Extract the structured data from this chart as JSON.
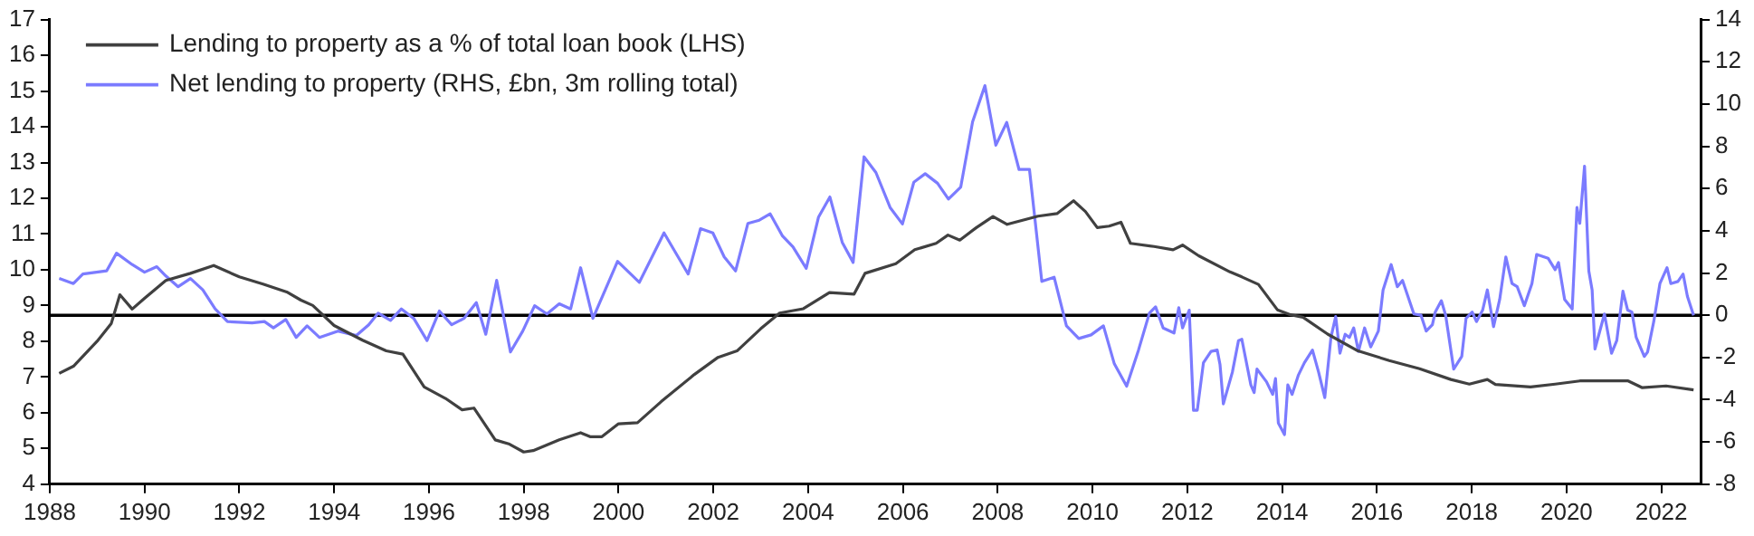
{
  "chart_data": {
    "type": "line",
    "xlim": [
      1988,
      2022.83
    ],
    "xticks": [
      1988,
      1990,
      1992,
      1994,
      1996,
      1998,
      2000,
      2002,
      2004,
      2006,
      2008,
      2010,
      2012,
      2014,
      2016,
      2018,
      2020,
      2022
    ],
    "ylim": [
      4,
      17
    ],
    "yticks": [
      4,
      5,
      6,
      7,
      8,
      9,
      10,
      11,
      12,
      13,
      14,
      15,
      16,
      17
    ],
    "y2lim": [
      -8,
      14
    ],
    "y2ticks": [
      -8,
      -6,
      -4,
      -2,
      0,
      2,
      4,
      6,
      8,
      10,
      12,
      14
    ],
    "grid": false,
    "legend": "top left",
    "marker": "none",
    "line_style": "solid",
    "ref_lines": [
      {
        "axis": "y2",
        "value": 0,
        "color": "#000000"
      }
    ],
    "series": [
      {
        "name": "Lending to property as a % of total loan book (LHS)",
        "color": "#404040",
        "x": [
          1988.2,
          1988.5,
          1989.0,
          1989.3,
          1989.48,
          1989.74,
          1990.0,
          1990.45,
          1990.97,
          1991.46,
          1992.0,
          1992.5,
          1993.0,
          1993.3,
          1993.55,
          1994.0,
          1994.6,
          1995.1,
          1995.45,
          1995.9,
          1996.35,
          1996.7,
          1996.95,
          1997.4,
          1997.7,
          1998.0,
          1998.2,
          1998.75,
          1999.2,
          1999.4,
          1999.65,
          2000.0,
          2000.4,
          2000.9,
          2001.6,
          2002.1,
          2002.5,
          2003.0,
          2003.4,
          2003.9,
          2004.45,
          2004.97,
          2005.2,
          2005.85,
          2006.25,
          2006.7,
          2006.95,
          2007.2,
          2007.55,
          2007.9,
          2008.2,
          2008.85,
          2009.25,
          2009.6,
          2009.85,
          2010.1,
          2010.35,
          2010.6,
          2010.8,
          2011.3,
          2011.7,
          2011.9,
          2012.24,
          2012.9,
          2013.15,
          2013.5,
          2013.9,
          2014.18,
          2014.44,
          2014.96,
          2015.6,
          2016.26,
          2016.9,
          2017.56,
          2017.95,
          2018.33,
          2018.5,
          2019.24,
          2019.76,
          2020.28,
          2020.54,
          2021.3,
          2021.6,
          2022.1,
          2022.68
        ],
        "values": [
          7.1,
          7.3,
          8.0,
          8.5,
          9.3,
          8.9,
          9.2,
          9.7,
          9.9,
          10.12,
          9.8,
          9.6,
          9.38,
          9.15,
          9.0,
          8.44,
          8.03,
          7.73,
          7.64,
          6.72,
          6.4,
          6.08,
          6.13,
          5.24,
          5.12,
          4.9,
          4.94,
          5.24,
          5.44,
          5.33,
          5.33,
          5.69,
          5.72,
          6.31,
          7.07,
          7.55,
          7.73,
          8.35,
          8.79,
          8.91,
          9.36,
          9.32,
          9.9,
          10.17,
          10.56,
          10.74,
          10.97,
          10.83,
          11.18,
          11.49,
          11.27,
          11.5,
          11.57,
          11.93,
          11.63,
          11.18,
          11.22,
          11.33,
          10.74,
          10.65,
          10.56,
          10.69,
          10.39,
          9.94,
          9.8,
          9.59,
          8.88,
          8.74,
          8.67,
          8.2,
          7.73,
          7.46,
          7.23,
          6.93,
          6.8,
          6.93,
          6.79,
          6.72,
          6.8,
          6.89,
          6.89,
          6.89,
          6.7,
          6.75,
          6.64
        ]
      },
      {
        "name": "Net lending to property (RHS, £bn, 3m rolling total)",
        "color": "#7b7bff",
        "axis": "y2",
        "x": [
          1988.2,
          1988.5,
          1988.7,
          1989.2,
          1989.41,
          1989.74,
          1990.0,
          1990.26,
          1990.45,
          1990.71,
          1990.97,
          1991.23,
          1991.49,
          1991.75,
          1992.27,
          1992.53,
          1992.72,
          1992.98,
          1993.2,
          1993.43,
          1993.69,
          1994.08,
          1994.47,
          1994.73,
          1994.93,
          1995.19,
          1995.42,
          1995.68,
          1995.96,
          1996.22,
          1996.48,
          1996.74,
          1997.0,
          1997.2,
          1997.43,
          1997.72,
          1997.98,
          1998.23,
          1998.49,
          1998.75,
          1998.99,
          1999.2,
          1999.46,
          1999.98,
          2000.44,
          2000.96,
          2001.47,
          2001.73,
          2001.99,
          2002.23,
          2002.47,
          2002.73,
          2002.97,
          2003.2,
          2003.46,
          2003.68,
          2003.96,
          2004.22,
          2004.46,
          2004.72,
          2004.95,
          2005.18,
          2005.43,
          2005.73,
          2005.99,
          2006.23,
          2006.47,
          2006.73,
          2006.96,
          2007.22,
          2007.47,
          2007.73,
          2007.96,
          2008.19,
          2008.45,
          2008.67,
          2008.93,
          2009.19,
          2009.45,
          2009.71,
          2009.97,
          2010.23,
          2010.46,
          2010.72,
          2010.97,
          2011.2,
          2011.33,
          2011.49,
          2011.72,
          2011.72,
          2011.82,
          2011.9,
          2012.04,
          2012.13,
          2012.21,
          2012.34,
          2012.5,
          2012.63,
          2012.69,
          2012.76,
          2012.95,
          2013.08,
          2013.15,
          2013.34,
          2013.41,
          2013.47,
          2013.67,
          2013.8,
          2013.86,
          2013.92,
          2014.05,
          2014.12,
          2014.21,
          2014.34,
          2014.47,
          2014.64,
          2014.77,
          2014.9,
          2015.03,
          2015.13,
          2015.22,
          2015.33,
          2015.42,
          2015.51,
          2015.61,
          2015.74,
          2015.87,
          2016.03,
          2016.13,
          2016.3,
          2016.43,
          2016.54,
          2016.78,
          2016.93,
          2017.04,
          2017.17,
          2017.23,
          2017.36,
          2017.45,
          2017.62,
          2017.79,
          2017.88,
          2018.01,
          2018.1,
          2018.23,
          2018.33,
          2018.46,
          2018.59,
          2018.72,
          2018.85,
          2018.96,
          2019.11,
          2019.27,
          2019.37,
          2019.61,
          2019.76,
          2019.83,
          2019.96,
          2020.12,
          2020.22,
          2020.28,
          2020.38,
          2020.47,
          2020.54,
          2020.6,
          2020.8,
          2020.95,
          2021.06,
          2021.19,
          2021.29,
          2021.38,
          2021.47,
          2021.64,
          2021.71,
          2021.84,
          2021.97,
          2022.12,
          2022.2,
          2022.35,
          2022.46,
          2022.55,
          2022.68
        ],
        "values": [
          1.74,
          1.5,
          1.95,
          2.1,
          2.94,
          2.4,
          2.04,
          2.3,
          1.86,
          1.35,
          1.74,
          1.2,
          0.3,
          -0.3,
          -0.36,
          -0.3,
          -0.6,
          -0.2,
          -1.05,
          -0.5,
          -1.05,
          -0.75,
          -0.96,
          -0.45,
          0.1,
          -0.24,
          0.3,
          -0.15,
          -1.2,
          0.2,
          -0.45,
          -0.15,
          0.6,
          -0.9,
          1.65,
          -1.74,
          -0.75,
          0.45,
          0.06,
          0.54,
          0.3,
          2.25,
          -0.15,
          2.55,
          1.56,
          3.9,
          1.95,
          4.1,
          3.9,
          2.76,
          2.1,
          4.35,
          4.5,
          4.8,
          3.75,
          3.24,
          2.22,
          4.65,
          5.6,
          3.45,
          2.5,
          7.5,
          6.76,
          5.1,
          4.32,
          6.3,
          6.7,
          6.25,
          5.5,
          6.07,
          9.16,
          10.87,
          8.05,
          9.13,
          6.9,
          6.9,
          1.6,
          1.8,
          -0.5,
          -1.1,
          -0.93,
          -0.5,
          -2.3,
          -3.36,
          -1.65,
          0.1,
          0.4,
          -0.6,
          -0.84,
          -0.84,
          0.36,
          -0.6,
          0.24,
          -4.5,
          -4.5,
          -2.25,
          -1.71,
          -1.65,
          -2.34,
          -4.2,
          -2.7,
          -1.2,
          -1.14,
          -3.3,
          -3.66,
          -2.55,
          -3.15,
          -3.75,
          -3.0,
          -5.1,
          -5.65,
          -3.3,
          -3.75,
          -2.85,
          -2.25,
          -1.65,
          -2.7,
          -3.9,
          -1.05,
          -0.06,
          -1.8,
          -0.9,
          -1.05,
          -0.6,
          -1.71,
          -0.6,
          -1.5,
          -0.75,
          1.2,
          2.4,
          1.35,
          1.65,
          0.06,
          0,
          -0.75,
          -0.45,
          0.15,
          0.69,
          0,
          -2.55,
          -1.95,
          -0.15,
          0.15,
          -0.3,
          0.24,
          1.2,
          -0.54,
          0.75,
          2.76,
          1.5,
          1.35,
          0.45,
          1.5,
          2.88,
          2.7,
          2.16,
          2.5,
          0.75,
          0.3,
          5.1,
          4.35,
          7.06,
          2.1,
          1.2,
          -1.6,
          0.06,
          -1.8,
          -1.2,
          1.14,
          0.24,
          0.15,
          -1.05,
          -1.95,
          -1.74,
          -0.3,
          1.5,
          2.25,
          1.5,
          1.6,
          1.95,
          0.9,
          0
        ]
      }
    ]
  }
}
